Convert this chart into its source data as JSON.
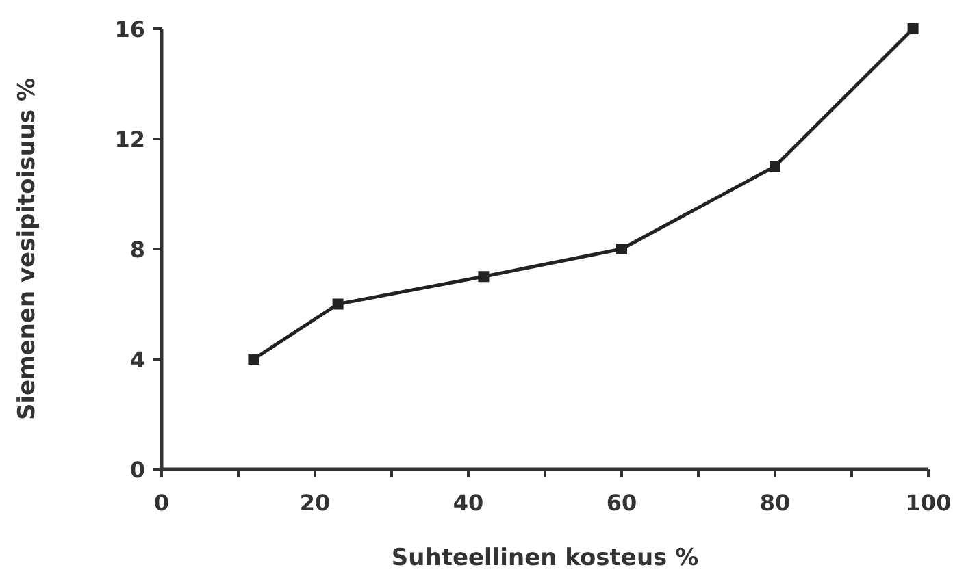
{
  "chart_data": {
    "type": "line",
    "xlabel": "Suhteellinen kosteus %",
    "ylabel": "Siemenen vesipitoisuus %",
    "x": [
      12,
      23,
      42,
      60,
      80,
      98
    ],
    "series": [
      {
        "color": "#222222",
        "values": [
          4,
          6,
          7,
          8,
          11,
          16
        ]
      }
    ],
    "marker": "square",
    "line_style": "solid",
    "grid": false,
    "xlim": [
      0,
      100
    ],
    "xticks": [
      0,
      {
        "value": 10,
        "label": null
      },
      20,
      {
        "value": 30,
        "label": null
      },
      40,
      {
        "value": 50,
        "label": null
      },
      60,
      {
        "value": 70,
        "label": null
      },
      80,
      {
        "value": 90,
        "label": null
      },
      100
    ],
    "ylim": [
      0,
      16
    ],
    "yticks": [
      0,
      4,
      8,
      12,
      16
    ]
  }
}
